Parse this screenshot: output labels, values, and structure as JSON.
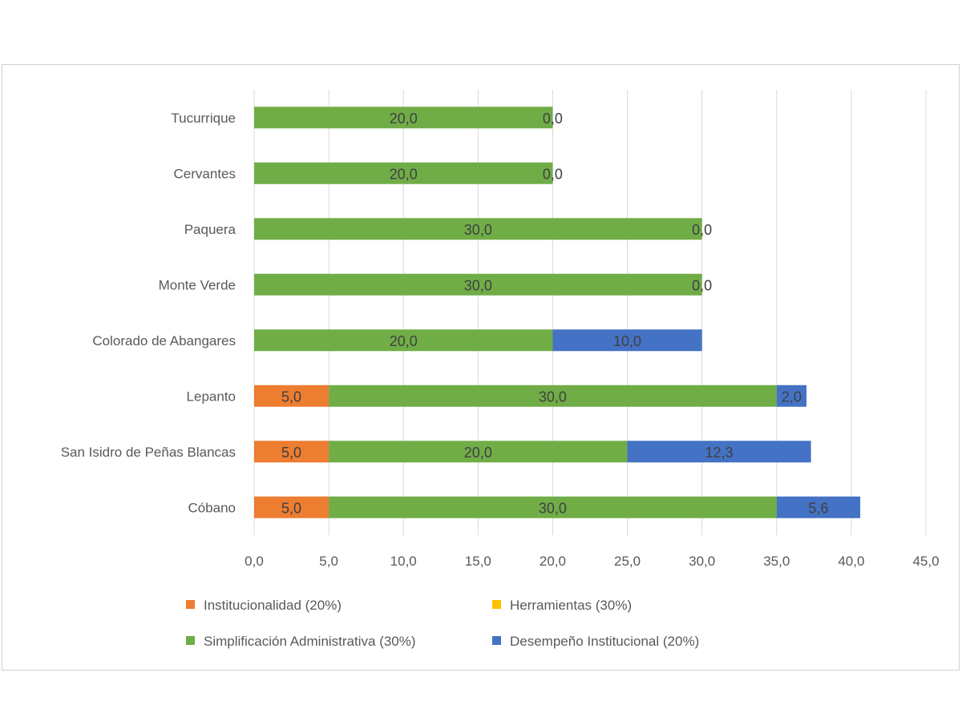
{
  "chart_data": {
    "type": "bar",
    "orientation": "horizontal",
    "stacked": true,
    "title": "",
    "xlabel": "",
    "ylabel": "",
    "xlim": [
      0,
      45
    ],
    "x_ticks": [
      "0,0",
      "5,0",
      "10,0",
      "15,0",
      "20,0",
      "25,0",
      "30,0",
      "35,0",
      "40,0",
      "45,0"
    ],
    "grid": true,
    "legend_position": "bottom",
    "categories": [
      "Tucurrique",
      "Cervantes",
      "Paquera",
      "Monte Verde",
      "Colorado de Abangares",
      "Lepanto",
      "San Isidro de Peñas Blancas",
      "Cóbano"
    ],
    "series": [
      {
        "name": "Institucionalidad (20%)",
        "color": "#ED7D31",
        "values": [
          null,
          null,
          null,
          null,
          null,
          5.0,
          5.0,
          5.0
        ]
      },
      {
        "name": "Herramientas (30%)",
        "color": "#FFC000",
        "values": [
          null,
          null,
          null,
          null,
          null,
          null,
          null,
          null
        ]
      },
      {
        "name": "Simplificación Administrativa (30%)",
        "color": "#70AD47",
        "values": [
          20.0,
          20.0,
          30.0,
          30.0,
          20.0,
          30.0,
          20.0,
          30.0
        ]
      },
      {
        "name": "Desempeño Institucional (20%)",
        "color": "#4472C4",
        "values": [
          0.0,
          0.0,
          0.0,
          0.0,
          10.0,
          2.0,
          12.3,
          5.6
        ]
      }
    ]
  }
}
